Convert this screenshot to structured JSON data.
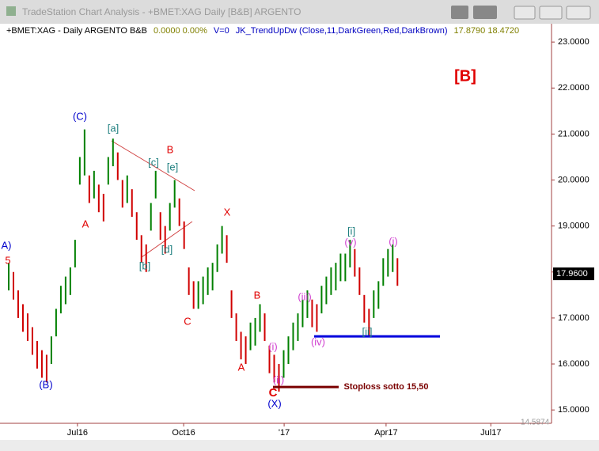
{
  "window_title": "TradeStation Chart Analysis - +BMET:XAG Daily [B&B] ARGENTO",
  "info": [
    {
      "text": "+BMET:XAG - Daily  ARGENTO  B&B",
      "color": "#000000"
    },
    {
      "text": "0.0000  0.00%",
      "color": "#808000"
    },
    {
      "text": "V=0",
      "color": "#0000c0"
    },
    {
      "text": "JK_TrendUpDw (Close,11,DarkGreen,Red,DarkBrown)",
      "color": "#0000c0"
    },
    {
      "text": "17.8790  18.4720",
      "color": "#808000"
    }
  ],
  "chart_data": {
    "type": "ohlc",
    "high": [
      18.2,
      18.0,
      17.6,
      17.3,
      17.1,
      16.8,
      16.5,
      16.3,
      16.2,
      16.6,
      17.2,
      17.7,
      17.9,
      18.1,
      18.7,
      20.5,
      21.1,
      20.1,
      20.2,
      19.9,
      19.7,
      20.5,
      20.9,
      20.6,
      20.0,
      20.1,
      19.8,
      19.3,
      18.8,
      18.6,
      19.5,
      20.2,
      19.3,
      19.0,
      19.5,
      20.0,
      19.6,
      19.1,
      18.1,
      17.8,
      17.8,
      17.9,
      18.1,
      18.2,
      18.6,
      19.0,
      18.8,
      17.6,
      17.1,
      16.7,
      16.6,
      16.9,
      17.0,
      17.3,
      17.1,
      16.4,
      16.2,
      16.0,
      16.3,
      16.6,
      16.9,
      17.1,
      17.4,
      17.6,
      17.4,
      17.3,
      17.7,
      17.9,
      18.1,
      18.2,
      18.4,
      18.4,
      18.7,
      18.5,
      18.1,
      17.5,
      17.2,
      17.6,
      17.8,
      18.3,
      18.5,
      18.6,
      18.3
    ],
    "low": [
      17.6,
      17.4,
      17.0,
      16.7,
      16.5,
      16.2,
      15.9,
      15.7,
      15.6,
      16.0,
      16.6,
      17.1,
      17.3,
      17.5,
      18.1,
      19.9,
      20.1,
      19.5,
      19.6,
      19.3,
      19.1,
      19.9,
      20.3,
      20.0,
      19.4,
      19.5,
      19.2,
      18.7,
      18.2,
      18.0,
      18.9,
      19.6,
      18.7,
      18.4,
      18.9,
      19.4,
      19.0,
      18.5,
      17.5,
      17.2,
      17.2,
      17.3,
      17.5,
      17.6,
      18.0,
      18.4,
      18.2,
      17.0,
      16.5,
      16.1,
      16.0,
      16.3,
      16.4,
      16.7,
      16.5,
      15.8,
      15.6,
      15.4,
      15.7,
      16.0,
      16.3,
      16.5,
      16.8,
      17.0,
      16.8,
      16.7,
      17.1,
      17.3,
      17.5,
      17.6,
      17.8,
      17.8,
      18.1,
      17.9,
      17.5,
      16.9,
      16.6,
      17.0,
      17.2,
      17.7,
      17.9,
      18.0,
      17.7
    ],
    "up_color": "#008000",
    "down_color": "#d00000",
    "xlim": [
      0,
      115
    ],
    "xticks": [
      {
        "value": 15,
        "label": "Jul16"
      },
      {
        "value": 37.4,
        "label": "Oct16"
      },
      {
        "value": 58.6,
        "label": "'17"
      },
      {
        "value": 80.1,
        "label": "Apr17"
      },
      {
        "value": 102.2,
        "label": "Jul17"
      }
    ],
    "ylim": [
      14.71,
      23.14
    ],
    "yticks": [
      {
        "value": 15,
        "label": "15.0000"
      },
      {
        "value": 16,
        "label": "16.0000"
      },
      {
        "value": 17,
        "label": "17.0000"
      },
      {
        "value": 18,
        "label": "18.0000"
      },
      {
        "value": 19,
        "label": "19.0000"
      },
      {
        "value": 20,
        "label": "20.0000"
      },
      {
        "value": 21,
        "label": "21.0000"
      },
      {
        "value": 22,
        "label": "22.0000"
      },
      {
        "value": 23,
        "label": "23.0000"
      }
    ],
    "last_price": {
      "value": 17.96,
      "label": "17.9600"
    },
    "min_price": {
      "value": 14.5874,
      "label": "14.5874"
    },
    "levels": [
      {
        "value": 16.6,
        "color": "#0000dd"
      },
      {
        "value": 15.5,
        "color": "#7a0000"
      }
    ],
    "annotations": [
      {
        "text": "(C)",
        "color": "#0000cc"
      },
      {
        "text": "[a]",
        "color": "#208080"
      },
      {
        "text": "B",
        "color": "#e00000"
      },
      {
        "text": "[c]",
        "color": "#208080"
      },
      {
        "text": "[e]",
        "color": "#208080"
      },
      {
        "text": "A",
        "color": "#e00000"
      },
      {
        "text": "[b]",
        "color": "#208080"
      },
      {
        "text": "[d]",
        "color": "#208080"
      },
      {
        "text": "X",
        "color": "#e00000"
      },
      {
        "text": "C",
        "color": "#e00000"
      },
      {
        "text": "B",
        "color": "#e00000"
      },
      {
        "text": "A",
        "color": "#e00000"
      },
      {
        "text": "(i)",
        "color": "#d040d0"
      },
      {
        "text": "(ii)",
        "color": "#d040d0"
      },
      {
        "text": "C",
        "color": "#e00000"
      },
      {
        "text": "(X)",
        "color": "#0000cc"
      },
      {
        "text": "(iii)",
        "color": "#d040d0"
      },
      {
        "text": "(iv)",
        "color": "#d040d0"
      },
      {
        "text": "(v)",
        "color": "#d040d0"
      },
      {
        "text": "[i]",
        "color": "#208080"
      },
      {
        "text": "[ii]",
        "color": "#208080"
      },
      {
        "text": "(i)",
        "color": "#d040d0"
      },
      {
        "text": "(B)",
        "color": "#0000cc"
      },
      {
        "text": "[B]",
        "color": "#e00000"
      },
      {
        "text": "A)",
        "color": "#0000cc"
      },
      {
        "text": "5",
        "color": "#e00000"
      },
      {
        "text": "Stoploss  sotto 15,50",
        "color": "#7a0000"
      }
    ]
  }
}
